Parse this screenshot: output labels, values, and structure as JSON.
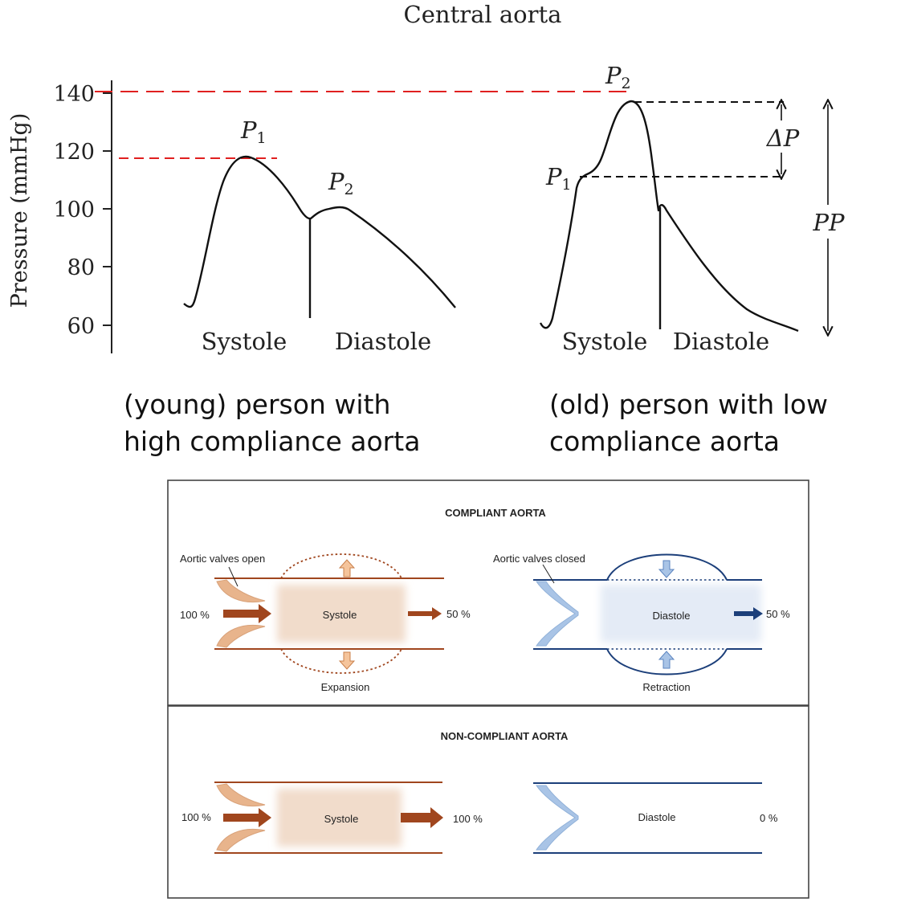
{
  "title": "Central aorta",
  "y_axis": {
    "label": "Pressure (mmHg)",
    "ticks": [
      "140",
      "120",
      "100",
      "80",
      "60"
    ]
  },
  "young_chart": {
    "p1_label": "P",
    "p1_sub": "1",
    "p2_label": "P",
    "p2_sub": "2",
    "systole": "Systole",
    "diastole": "Diastole",
    "caption_line1": "(young) person with",
    "caption_line2": "high compliance aorta"
  },
  "old_chart": {
    "p1_label": "P",
    "p1_sub": "1",
    "p2_label": "P",
    "p2_sub": "2",
    "delta_p": "ΔP",
    "pp": "PP",
    "systole": "Systole",
    "diastole": "Diastole",
    "caption_line1": "(old) person with low",
    "caption_line2": "compliance aorta"
  },
  "compliant_panel": {
    "title": "COMPLIANT AORTA",
    "valves_open": "Aortic valves open",
    "valves_closed": "Aortic valves closed",
    "in_systole": "100 %",
    "systole": "Systole",
    "out_systole": "50 %",
    "diastole": "Diastole",
    "out_diastole": "50 %",
    "expansion": "Expansion",
    "retraction": "Retraction"
  },
  "noncompliant_panel": {
    "title": "NON-COMPLIANT AORTA",
    "in_systole": "100 %",
    "systole": "Systole",
    "out_systole": "100 %",
    "diastole": "Diastole",
    "out_diastole": "0 %"
  },
  "colors": {
    "reference_line": "#e02020",
    "arterial_brown": "#a0461e",
    "valve_tan": "#e8b48c",
    "systole_fill": "#f1dccb",
    "venous_blue": "#1c3f7a",
    "valve_blue": "#a9c4e6",
    "diastole_fill": "#e4ebf6"
  }
}
